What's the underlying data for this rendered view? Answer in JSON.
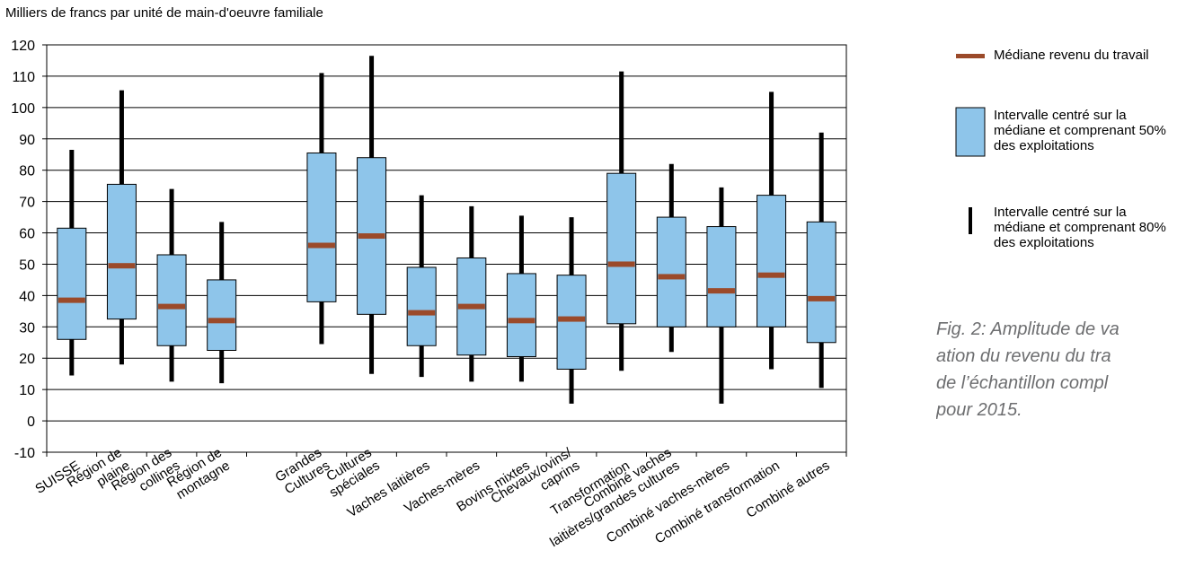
{
  "chart_data": {
    "type": "boxplot",
    "ylabel": "Milliers de francs par unité de main-d'oeuvre familiale",
    "ylim": [
      -10,
      120
    ],
    "yticks": [
      -10,
      0,
      10,
      20,
      30,
      40,
      50,
      60,
      70,
      80,
      90,
      100,
      110,
      120
    ],
    "grid": true,
    "colors": {
      "box": "#8ec5ea",
      "median": "#9b4a2a",
      "whisker": "#000000",
      "grid": "#000000"
    },
    "categories": [
      {
        "label": "SUISSE",
        "slot": 0,
        "p10": 14.5,
        "q1": 26,
        "median": 38.5,
        "q3": 61.5,
        "p90": 86.5
      },
      {
        "label": "Région de\nplaine",
        "slot": 1,
        "p10": 18,
        "q1": 32.5,
        "median": 49.5,
        "q3": 75.5,
        "p90": 105.5
      },
      {
        "label": "Région des\ncollines",
        "slot": 2,
        "p10": 12.5,
        "q1": 24,
        "median": 36.5,
        "q3": 53,
        "p90": 74
      },
      {
        "label": "Région de\nmontagne",
        "slot": 3,
        "p10": 12,
        "q1": 22.5,
        "median": 32,
        "q3": 45,
        "p90": 63.5
      },
      {
        "label": "Grandes\nCultures",
        "slot": 5,
        "p10": 24.5,
        "q1": 38,
        "median": 56,
        "q3": 85.5,
        "p90": 111
      },
      {
        "label": "Cultures\nspéciales",
        "slot": 6,
        "p10": 15,
        "q1": 34,
        "median": 59,
        "q3": 84,
        "p90": 116.5
      },
      {
        "label": "Vaches laitières",
        "slot": 7,
        "p10": 14,
        "q1": 24,
        "median": 34.5,
        "q3": 49,
        "p90": 72
      },
      {
        "label": "Vaches-mères",
        "slot": 8,
        "p10": 12.5,
        "q1": 21,
        "median": 36.5,
        "q3": 52,
        "p90": 68.5
      },
      {
        "label": "Bovins mixtes",
        "slot": 9,
        "p10": 12.5,
        "q1": 20.5,
        "median": 32,
        "q3": 47,
        "p90": 65.5
      },
      {
        "label": "Chevaux/ovins/\ncaprins",
        "slot": 10,
        "p10": 5.5,
        "q1": 16.5,
        "median": 32.5,
        "q3": 46.5,
        "p90": 65
      },
      {
        "label": "Transformation",
        "slot": 11,
        "p10": 16,
        "q1": 31,
        "median": 50,
        "q3": 79,
        "p90": 111.5
      },
      {
        "label": "Combiné vaches\nlaitières/grandes cultures",
        "slot": 12,
        "p10": 22,
        "q1": 30,
        "median": 46,
        "q3": 65,
        "p90": 82
      },
      {
        "label": "Combiné vaches-mères",
        "slot": 13,
        "p10": 5.5,
        "q1": 30,
        "median": 41.5,
        "q3": 62,
        "p90": 74.5
      },
      {
        "label": "Combiné transformation",
        "slot": 14,
        "p10": 16.5,
        "q1": 30,
        "median": 46.5,
        "q3": 72,
        "p90": 105
      },
      {
        "label": "Combiné autres",
        "slot": 15,
        "p10": 10.5,
        "q1": 25,
        "median": 39,
        "q3": 63.5,
        "p90": 92
      }
    ]
  },
  "legend": {
    "median": "Médiane revenu du travail",
    "box50": "Intervalle centré sur la médiane et comprenant 50% des exploitations",
    "box80": "Intervalle centré sur la médiane et comprenant 80% des exploitations"
  },
  "caption": "Fig. 2: Amplitude de va\nation du revenu du tra\nde l’échantillon compl\npour 2015."
}
